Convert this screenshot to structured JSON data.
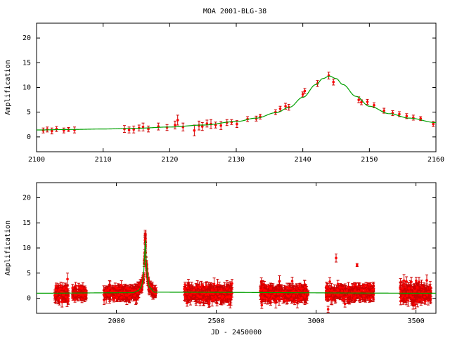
{
  "title": "MOA 2001-BLG-38",
  "chart_data": [
    {
      "type": "scatter",
      "panel": "top",
      "title": "MOA 2001-BLG-38",
      "xlabel": "",
      "ylabel": "Amplification",
      "xlim": [
        2100,
        2160
      ],
      "ylim": [
        -3,
        23
      ],
      "xticks": [
        2100,
        2110,
        2120,
        2130,
        2140,
        2150,
        2160
      ],
      "yticks": [
        0,
        5,
        10,
        15,
        20
      ],
      "grid": false,
      "colors": {
        "points": "#ff0000",
        "model": "#00a000",
        "errorbars": "#cc0000"
      },
      "model": {
        "name": "",
        "x": [
          2100,
          2105,
          2110,
          2115,
          2120,
          2125,
          2130,
          2133,
          2136,
          2138,
          2140,
          2142,
          2143,
          2144,
          2145,
          2146,
          2148,
          2150,
          2153,
          2156,
          2160
        ],
        "y": [
          1.4,
          1.5,
          1.6,
          1.75,
          2.0,
          2.4,
          3.1,
          3.8,
          4.9,
          6.0,
          8.0,
          10.6,
          11.8,
          12.3,
          11.8,
          10.6,
          8.2,
          6.2,
          4.7,
          3.8,
          2.9
        ]
      },
      "series": [
        {
          "name": "",
          "points": [
            {
              "x": 2101.0,
              "y": 1.3,
              "err": 0.5
            },
            {
              "x": 2101.6,
              "y": 1.5,
              "err": 0.5
            },
            {
              "x": 2102.3,
              "y": 1.2,
              "err": 0.6
            },
            {
              "x": 2103.0,
              "y": 1.6,
              "err": 0.5
            },
            {
              "x": 2104.1,
              "y": 1.3,
              "err": 0.5
            },
            {
              "x": 2104.8,
              "y": 1.5,
              "err": 0.4
            },
            {
              "x": 2105.7,
              "y": 1.4,
              "err": 0.6
            },
            {
              "x": 2113.2,
              "y": 1.6,
              "err": 0.7
            },
            {
              "x": 2113.9,
              "y": 1.4,
              "err": 0.6
            },
            {
              "x": 2114.6,
              "y": 1.5,
              "err": 0.7
            },
            {
              "x": 2115.4,
              "y": 1.8,
              "err": 0.6
            },
            {
              "x": 2116.0,
              "y": 2.0,
              "err": 0.8
            },
            {
              "x": 2116.8,
              "y": 1.6,
              "err": 0.6
            },
            {
              "x": 2118.3,
              "y": 2.1,
              "err": 0.7
            },
            {
              "x": 2119.6,
              "y": 1.9,
              "err": 0.6
            },
            {
              "x": 2120.8,
              "y": 2.4,
              "err": 0.8
            },
            {
              "x": 2121.2,
              "y": 3.4,
              "err": 1.0
            },
            {
              "x": 2122.0,
              "y": 2.0,
              "err": 0.8
            },
            {
              "x": 2123.7,
              "y": 1.3,
              "err": 1.1
            },
            {
              "x": 2124.4,
              "y": 2.3,
              "err": 0.9
            },
            {
              "x": 2124.9,
              "y": 2.1,
              "err": 0.8
            },
            {
              "x": 2125.6,
              "y": 2.7,
              "err": 0.7
            },
            {
              "x": 2126.2,
              "y": 2.6,
              "err": 0.9
            },
            {
              "x": 2126.9,
              "y": 2.4,
              "err": 0.6
            },
            {
              "x": 2127.7,
              "y": 2.3,
              "err": 0.8
            },
            {
              "x": 2128.6,
              "y": 2.9,
              "err": 0.6
            },
            {
              "x": 2129.3,
              "y": 3.0,
              "err": 0.5
            },
            {
              "x": 2130.1,
              "y": 2.6,
              "err": 0.7
            },
            {
              "x": 2131.7,
              "y": 3.6,
              "err": 0.5
            },
            {
              "x": 2133.0,
              "y": 3.7,
              "err": 0.5
            },
            {
              "x": 2133.6,
              "y": 4.1,
              "err": 0.5
            },
            {
              "x": 2135.9,
              "y": 5.0,
              "err": 0.5
            },
            {
              "x": 2136.6,
              "y": 5.7,
              "err": 0.5
            },
            {
              "x": 2137.4,
              "y": 6.2,
              "err": 0.6
            },
            {
              "x": 2137.9,
              "y": 6.0,
              "err": 0.6
            },
            {
              "x": 2140.0,
              "y": 8.6,
              "err": 0.5
            },
            {
              "x": 2140.3,
              "y": 9.3,
              "err": 0.5
            },
            {
              "x": 2142.2,
              "y": 10.8,
              "err": 0.6
            },
            {
              "x": 2143.9,
              "y": 12.4,
              "err": 0.7
            },
            {
              "x": 2144.6,
              "y": 11.1,
              "err": 0.6
            },
            {
              "x": 2148.4,
              "y": 7.5,
              "err": 0.6
            },
            {
              "x": 2148.8,
              "y": 7.0,
              "err": 0.5
            },
            {
              "x": 2149.7,
              "y": 7.1,
              "err": 0.5
            },
            {
              "x": 2150.7,
              "y": 6.4,
              "err": 0.5
            },
            {
              "x": 2152.2,
              "y": 5.3,
              "err": 0.5
            },
            {
              "x": 2153.5,
              "y": 4.8,
              "err": 0.5
            },
            {
              "x": 2154.5,
              "y": 4.6,
              "err": 0.5
            },
            {
              "x": 2155.6,
              "y": 4.2,
              "err": 0.5
            },
            {
              "x": 2156.6,
              "y": 3.9,
              "err": 0.5
            },
            {
              "x": 2157.7,
              "y": 3.7,
              "err": 0.4
            },
            {
              "x": 2159.6,
              "y": 2.6,
              "err": 0.5
            }
          ]
        }
      ]
    },
    {
      "type": "scatter",
      "panel": "bottom",
      "xlabel": "JD - 2450000",
      "ylabel": "Amplification",
      "xlim": [
        1600,
        3600
      ],
      "ylim": [
        -3,
        23
      ],
      "xticks": [
        2000,
        2500,
        3000,
        3500
      ],
      "yticks": [
        0,
        5,
        10,
        15,
        20
      ],
      "grid": false,
      "colors": {
        "points": "#ff0000",
        "model": "#00a000",
        "errorbars": "#cc0000"
      },
      "model": {
        "name": "",
        "baseline": 1.0,
        "peak_x": 2144,
        "peak_y": 12.3,
        "x": [
          1600,
          2080,
          2110,
          2125,
          2135,
          2140,
          2144,
          2148,
          2155,
          2165,
          2190,
          3600
        ],
        "y": [
          1.0,
          1.1,
          1.5,
          2.3,
          4.0,
          7.5,
          12.3,
          7.6,
          4.2,
          2.2,
          1.2,
          1.0
        ]
      },
      "series": [
        {
          "name": "",
          "seasons": [
            {
              "x_start": 1690,
              "x_end": 1760,
              "y_center": 1.0,
              "spread": 1.6
            },
            {
              "x_start": 1780,
              "x_end": 1850,
              "y_center": 1.0,
              "spread": 1.2
            },
            {
              "x_start": 1935,
              "x_end": 2110,
              "y_center": 1.0,
              "spread": 1.4
            },
            {
              "x_start": 2180,
              "x_end": 2200,
              "y_center": 1.0,
              "spread": 0.8
            },
            {
              "x_start": 2340,
              "x_end": 2580,
              "y_center": 1.0,
              "spread": 1.8
            },
            {
              "x_start": 2720,
              "x_end": 2960,
              "y_center": 1.0,
              "spread": 1.6
            },
            {
              "x_start": 3050,
              "x_end": 3290,
              "y_center": 1.0,
              "spread": 1.5
            },
            {
              "x_start": 3420,
              "x_end": 3575,
              "y_center": 1.0,
              "spread": 2.0
            }
          ],
          "outliers": [
            {
              "x": 3100,
              "y": 8.0,
              "err": 0.8
            },
            {
              "x": 3205,
              "y": 6.6,
              "err": 0.3
            },
            {
              "x": 1755,
              "y": 3.8,
              "err": 1.2
            },
            {
              "x": 3440,
              "y": 3.5,
              "err": 1.2
            },
            {
              "x": 3060,
              "y": -2.2,
              "err": 0.6
            },
            {
              "x": 2880,
              "y": 3.4,
              "err": 0.8
            }
          ]
        }
      ]
    }
  ]
}
